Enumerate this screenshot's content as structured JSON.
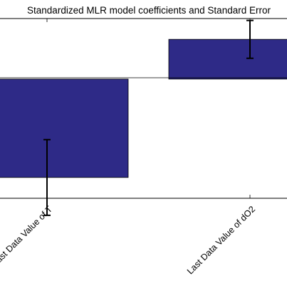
{
  "chart_data": {
    "type": "bar",
    "title": "Standardized MLR model coefficients and Standard Error",
    "xlabel": "",
    "ylabel": "",
    "categories": [
      "Last Data Value of T",
      "Last Data Value of dO2"
    ],
    "values": [
      -0.52,
      0.21
    ],
    "error": [
      0.2,
      0.1
    ],
    "ylim": [
      -0.63,
      0.32
    ],
    "grid": false,
    "legend": "none",
    "bar_color": "#2e2a87",
    "edge_color": "#000000"
  }
}
